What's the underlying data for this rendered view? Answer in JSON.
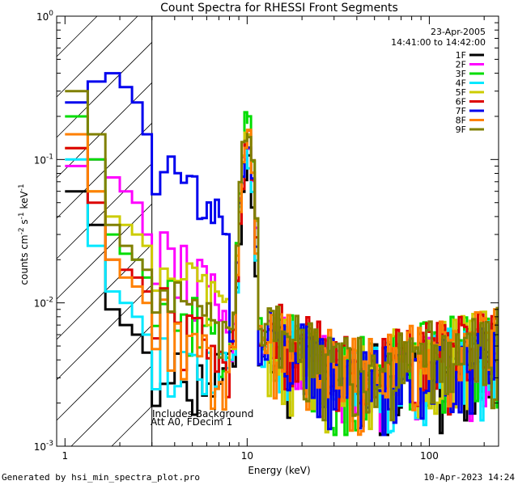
{
  "chart_data": {
    "type": "line",
    "title": "Count Spectra for RHESSI Front Segments",
    "date": "23-Apr-2005",
    "time_range": "14:41:00 to 14:42:00",
    "xlabel": "Energy (keV)",
    "ylabel_parts": {
      "a": "counts cm",
      "b": "-2",
      "c": " s",
      "d": "-1",
      "e": " keV",
      "f": "-1"
    },
    "xscale": "log",
    "yscale": "log",
    "xlim": [
      0.9,
      240
    ],
    "ylim": [
      0.001,
      1
    ],
    "x_ticks": [
      {
        "v": 1,
        "label": "1"
      },
      {
        "v": 10,
        "label": "10"
      },
      {
        "v": 100,
        "label": "100"
      }
    ],
    "y_ticks": [
      {
        "v": 1,
        "base": "10",
        "exp": "0"
      },
      {
        "v": 0.1,
        "base": "10",
        "exp": "-1"
      },
      {
        "v": 0.01,
        "base": "10",
        "exp": "-2"
      },
      {
        "v": 0.001,
        "base": "10",
        "exp": "-3"
      }
    ],
    "hatched_region_x": [
      0.9,
      3.0
    ],
    "annotation_lines": [
      "Includes Background",
      "Att A0, FDecim 1"
    ],
    "legend_position": "top-right",
    "legend": [
      {
        "name": "1F",
        "color": "#000000"
      },
      {
        "name": "2F",
        "color": "#ff00ff"
      },
      {
        "name": "3F",
        "color": "#00dd00"
      },
      {
        "name": "4F",
        "color": "#00e8ff"
      },
      {
        "name": "5F",
        "color": "#cccc00"
      },
      {
        "name": "6F",
        "color": "#dd0000"
      },
      {
        "name": "7F",
        "color": "#0000ee"
      },
      {
        "name": "8F",
        "color": "#ff8000"
      },
      {
        "name": "9F",
        "color": "#808000"
      }
    ],
    "series_profiles": [
      {
        "name": "1F",
        "low": [
          0.06,
          0.035,
          0.012,
          0.009,
          0.007,
          0.006,
          0.005,
          0.0045,
          0.004
        ],
        "peak": 0.1,
        "cont": 0.0045,
        "tail": 0.0025
      },
      {
        "name": "2F",
        "low": [
          0.09,
          0.1,
          0.09,
          0.075,
          0.06,
          0.05,
          0.04,
          0.03,
          0.028
        ],
        "peak": 0.15,
        "cont": 0.005,
        "tail": 0.0025
      },
      {
        "name": "3F",
        "low": [
          0.2,
          0.1,
          0.05,
          0.03,
          0.022,
          0.02,
          0.018,
          0.015,
          0.014
        ],
        "peak": 0.2,
        "cont": 0.006,
        "tail": 0.003
      },
      {
        "name": "4F",
        "low": [
          0.1,
          0.025,
          0.02,
          0.012,
          0.01,
          0.008,
          0.007,
          0.006,
          0.005
        ],
        "peak": 0.12,
        "cont": 0.005,
        "tail": 0.0025
      },
      {
        "name": "5F",
        "low": [
          0.12,
          0.06,
          0.045,
          0.04,
          0.035,
          0.03,
          0.027,
          0.025,
          0.024
        ],
        "peak": 0.16,
        "cont": 0.005,
        "tail": 0.003
      },
      {
        "name": "6F",
        "low": [
          0.12,
          0.05,
          0.03,
          0.02,
          0.017,
          0.015,
          0.013,
          0.012,
          0.011
        ],
        "peak": 0.14,
        "cont": 0.006,
        "tail": 0.003
      },
      {
        "name": "7F",
        "low": [
          0.25,
          0.35,
          0.43,
          0.4,
          0.32,
          0.25,
          0.2,
          0.15,
          0.11
        ],
        "peak": 0.14,
        "cont": 0.005,
        "tail": 0.0025
      },
      {
        "name": "8F",
        "low": [
          0.15,
          0.06,
          0.03,
          0.02,
          0.015,
          0.013,
          0.011,
          0.01,
          0.009
        ],
        "peak": 0.15,
        "cont": 0.006,
        "tail": 0.003
      },
      {
        "name": "9F",
        "low": [
          0.3,
          0.15,
          0.06,
          0.035,
          0.025,
          0.02,
          0.018,
          0.017,
          0.016
        ],
        "peak": 0.18,
        "cont": 0.006,
        "tail": 0.003
      }
    ]
  },
  "footer": {
    "left": "Generated by hsi_min_spectra_plot.pro",
    "right": "10-Apr-2023 14:24"
  }
}
